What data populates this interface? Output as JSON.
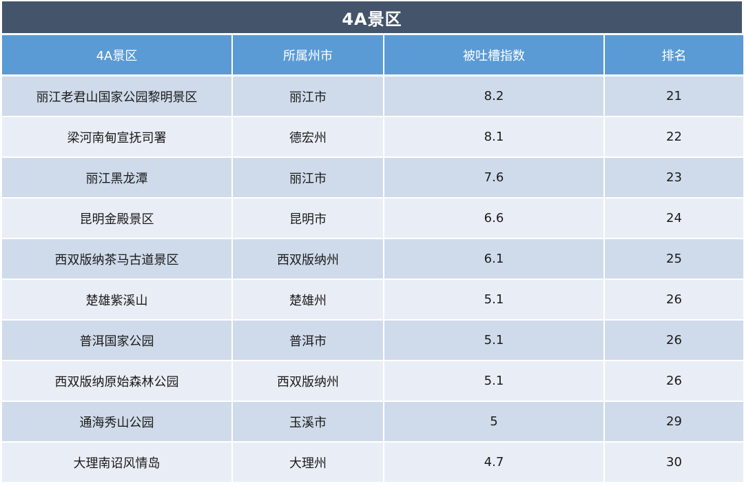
{
  "title": "4A景区",
  "headers": [
    "4A景区",
    "所属州市",
    "被吐槽指数",
    "排名"
  ],
  "rows": [
    [
      "丽江老君山国家公园黎明景区",
      "丽江市",
      "8.2",
      "21"
    ],
    [
      "梁河南甸宣抚司署",
      "德宏州",
      "8.1",
      "22"
    ],
    [
      "丽江黑龙潭",
      "丽江市",
      "7.6",
      "23"
    ],
    [
      "昆明金殿景区",
      "昆明市",
      "6.6",
      "24"
    ],
    [
      "西双版纳茶马古道景区",
      "西双版纳州",
      "6.1",
      "25"
    ],
    [
      "楚雄紫溪山",
      "楚雄州",
      "5.1",
      "26"
    ],
    [
      "普洱国家公园",
      "普洱市",
      "5.1",
      "26"
    ],
    [
      "西双版纳原始森林公园",
      "西双版纳州",
      "5.1",
      "26"
    ],
    [
      "通海秀山公园",
      "玉溪市",
      "5",
      "29"
    ],
    [
      "大理南诏风情岛",
      "大理州",
      "4.7",
      "30"
    ]
  ],
  "colors": {
    "title_bg": "#44546a",
    "header_bg": "#5b9bd5",
    "row_odd": "#cfdbea",
    "row_even": "#e9eef6"
  }
}
